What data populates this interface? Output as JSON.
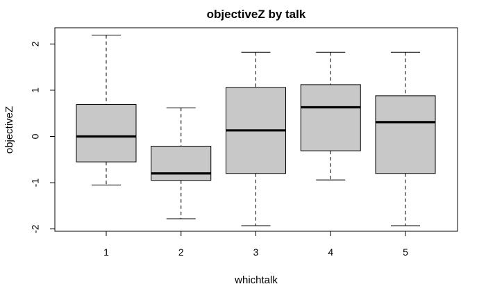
{
  "chart_data": {
    "type": "boxplot",
    "title": "objectiveZ by talk",
    "xlabel": "whichtalk",
    "ylabel": "objectiveZ",
    "ylim": [
      -2.05,
      2.35
    ],
    "yticks": [
      -2,
      -1,
      0,
      1,
      2
    ],
    "categories": [
      "1",
      "2",
      "3",
      "4",
      "5"
    ],
    "boxes": [
      {
        "category": "1",
        "whisker_low": -1.05,
        "q1": -0.55,
        "median": 0.0,
        "q3": 0.69,
        "whisker_high": 2.19
      },
      {
        "category": "2",
        "whisker_low": -1.78,
        "q1": -0.95,
        "median": -0.8,
        "q3": -0.21,
        "whisker_high": 0.62
      },
      {
        "category": "3",
        "whisker_low": -1.93,
        "q1": -0.8,
        "median": 0.13,
        "q3": 1.06,
        "whisker_high": 1.82
      },
      {
        "category": "4",
        "whisker_low": -0.94,
        "q1": -0.31,
        "median": 0.63,
        "q3": 1.12,
        "whisker_high": 1.82
      },
      {
        "category": "5",
        "whisker_low": -1.93,
        "q1": -0.8,
        "median": 0.31,
        "q3": 0.88,
        "whisker_high": 1.82
      }
    ],
    "box_fill": "#c8c8c8",
    "grid": false,
    "legend": "none"
  }
}
